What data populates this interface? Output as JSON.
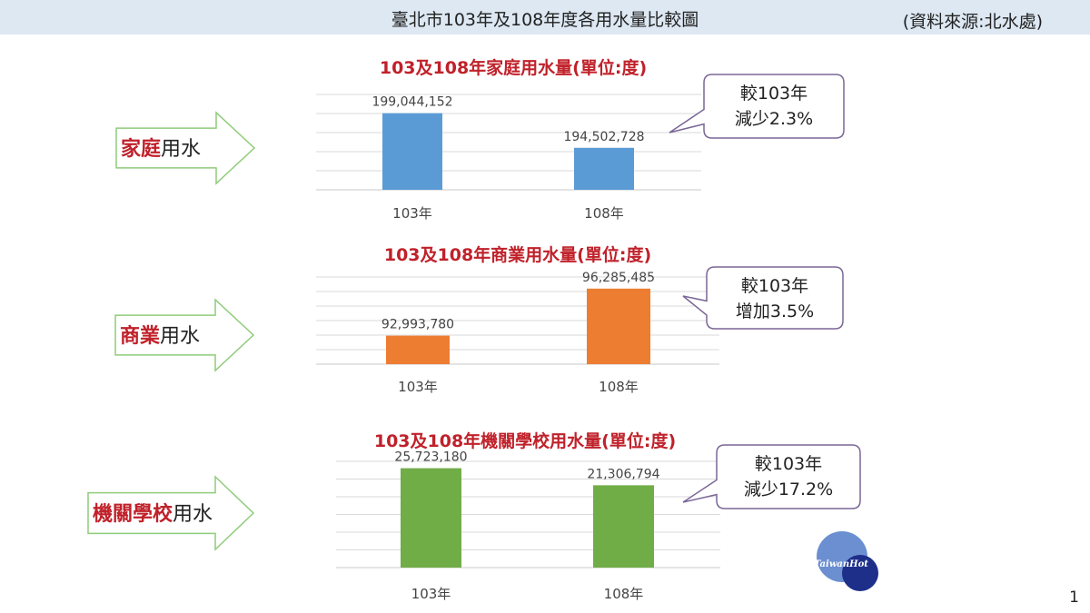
{
  "header": {
    "title": "臺北市103年及108年度各用水量比較圖",
    "source": "(資料來源:北水處)"
  },
  "page_number": "1",
  "logo_text": "TaiwanHot",
  "colors": {
    "title_red": "#c0212a",
    "residential_bar": "#5b9bd5",
    "commercial_bar": "#ed7d31",
    "institutional_bar": "#70ad47",
    "arrow_stroke": "#8fcc7a",
    "callout_stroke": "#7a6796"
  },
  "sections": [
    {
      "label_bold": "家庭",
      "label_rest": "用水",
      "callout": [
        "較103年",
        "減少2.3%"
      ]
    },
    {
      "label_bold": "商業",
      "label_rest": "用水",
      "callout": [
        "較103年",
        "增加3.5%"
      ]
    },
    {
      "label_bold": "機關學校",
      "label_rest": "用水",
      "callout": [
        "較103年",
        "減少17.2%"
      ]
    }
  ],
  "chart_data": [
    {
      "type": "bar",
      "title": "103及108年家庭用水量(單位:度)",
      "categories": [
        "103年",
        "108年"
      ],
      "values": [
        199044152,
        194502728
      ],
      "value_labels": [
        "199,044,152",
        "194,502,728"
      ],
      "ylim": [
        189000000,
        201500000
      ],
      "grid": true,
      "color": "#5b9bd5"
    },
    {
      "type": "bar",
      "title": "103及108年商業用水量(單位:度)",
      "categories": [
        "103年",
        "108年"
      ],
      "values": [
        92993780,
        96285485
      ],
      "value_labels": [
        "92,993,780",
        "96,285,485"
      ],
      "ylim": [
        91000000,
        97100000
      ],
      "grid": true,
      "color": "#ed7d31"
    },
    {
      "type": "bar",
      "title": "103及108年機關學校用水量(單位:度)",
      "categories": [
        "103年",
        "108年"
      ],
      "values": [
        25723180,
        21306794
      ],
      "value_labels": [
        "25,723,180",
        "21,306,794"
      ],
      "ylim": [
        0,
        27500000
      ],
      "grid": true,
      "color": "#70ad47"
    }
  ]
}
